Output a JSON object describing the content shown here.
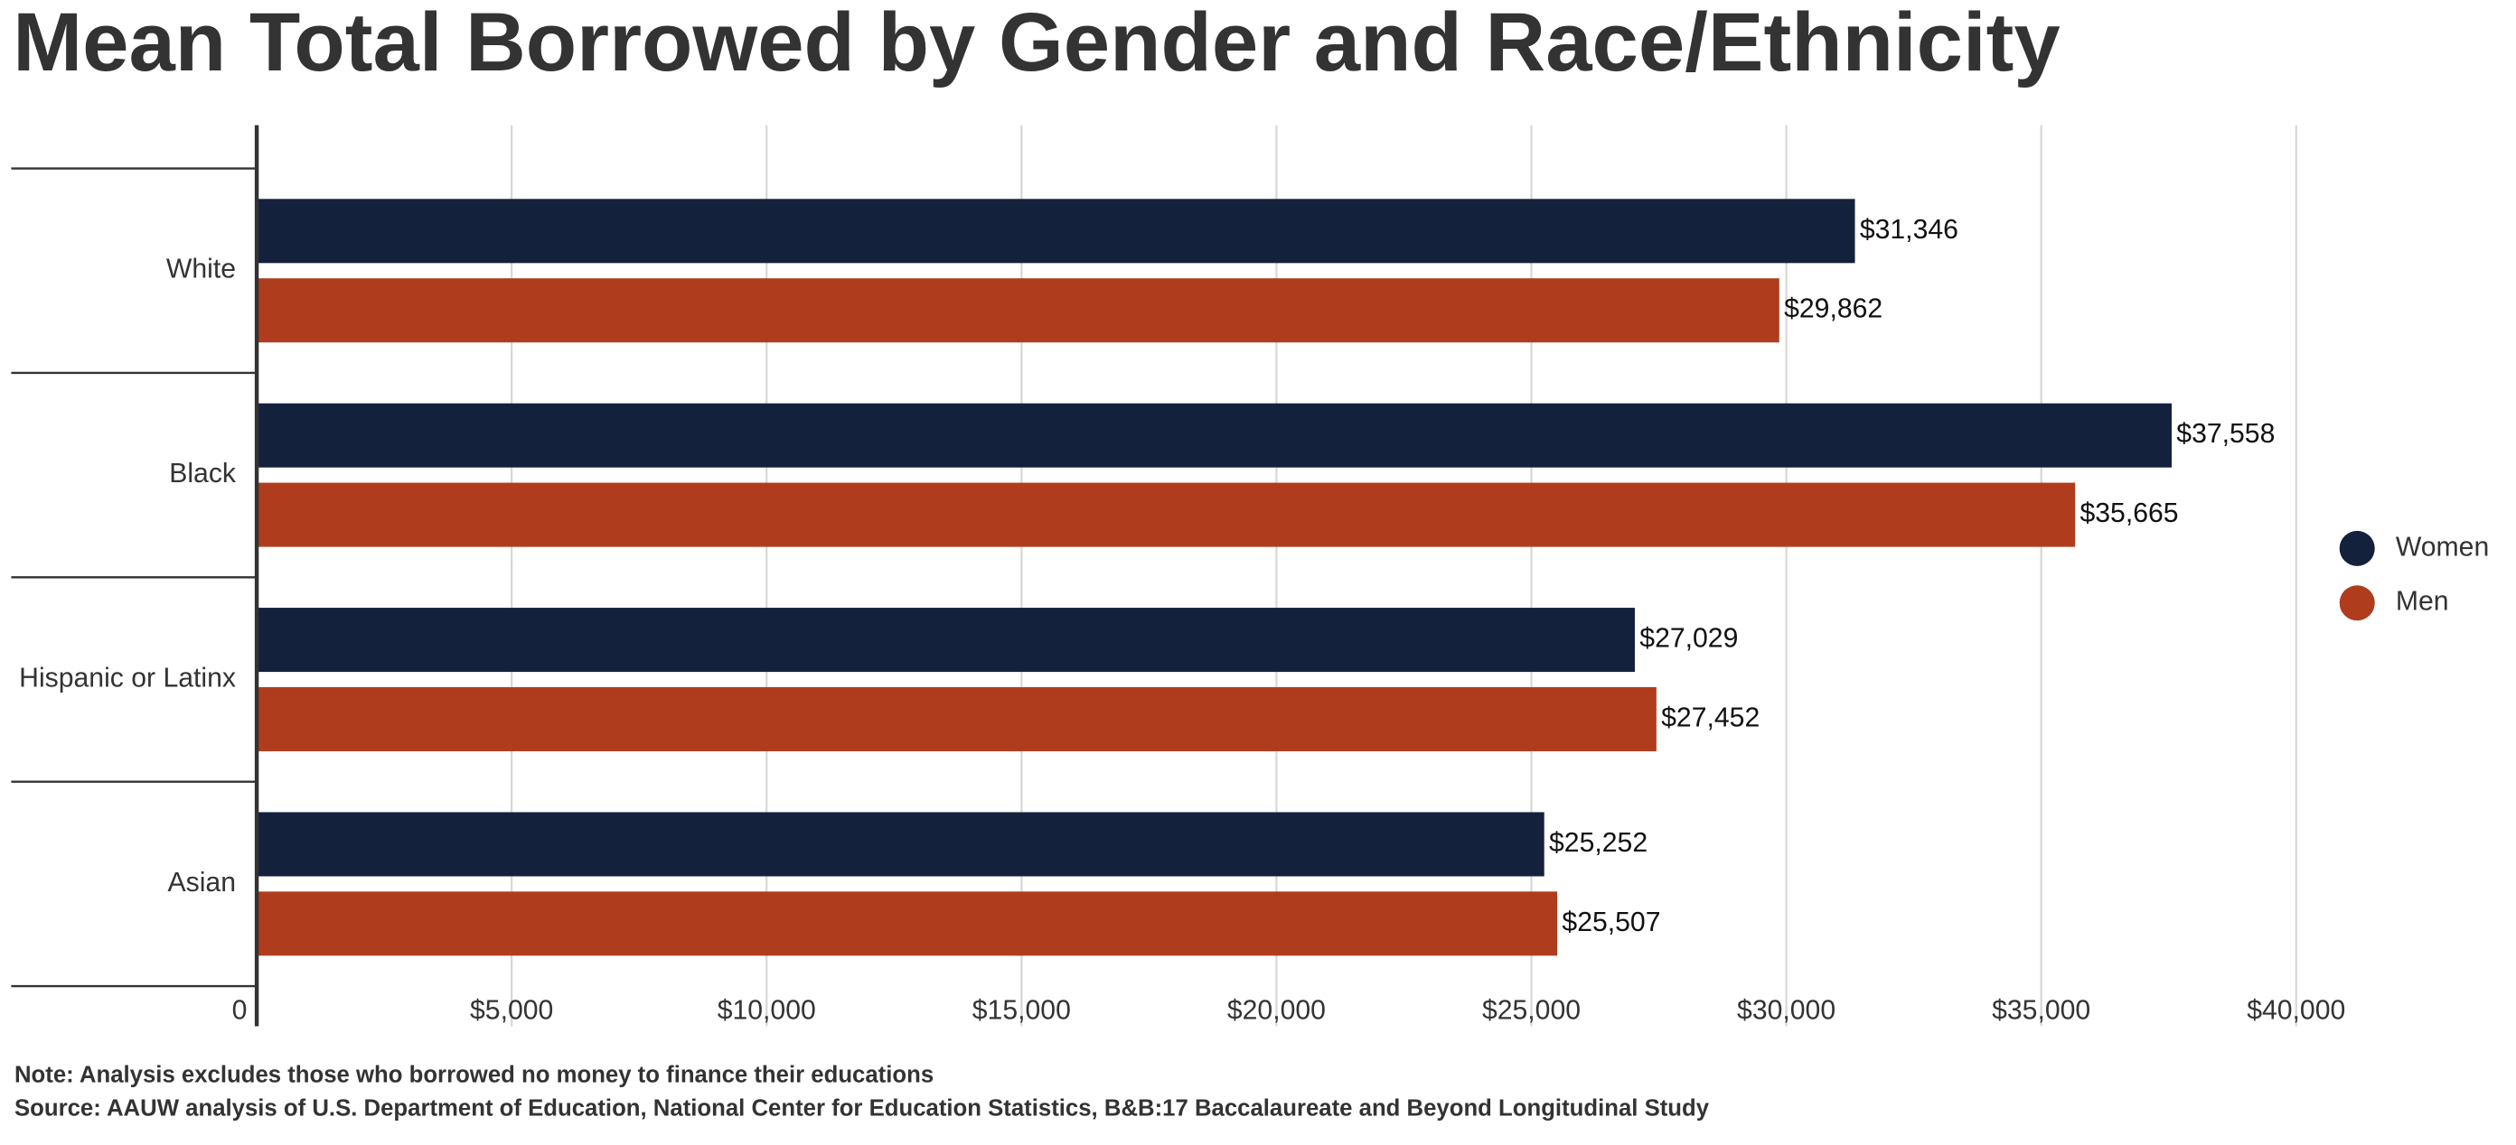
{
  "chart_data": {
    "type": "bar",
    "orientation": "horizontal",
    "title": "Mean Total Borrowed by Gender and Race/Ethnicity",
    "categories": [
      "White",
      "Black",
      "Hispanic or Latinx",
      "Asian"
    ],
    "series": [
      {
        "name": "Women",
        "color": "#13213c",
        "values": [
          31346,
          37558,
          27029,
          25252
        ],
        "value_labels": [
          "$31,346",
          "$37,558",
          "$27,029",
          "$25,252"
        ]
      },
      {
        "name": "Men",
        "color": "#b03c1e",
        "values": [
          29862,
          35665,
          27452,
          25507
        ],
        "value_labels": [
          "$29,862",
          "$35,665",
          "$27,452",
          "$25,507"
        ]
      }
    ],
    "xlim": [
      0,
      40000
    ],
    "xticks": [
      0,
      {
        "value": 5000,
        "label": "$5,000"
      },
      {
        "value": 10000,
        "label": "$10,000"
      },
      {
        "value": 15000,
        "label": "$15,000"
      },
      {
        "value": 20000,
        "label": "$20,000"
      },
      {
        "value": 25000,
        "label": "$25,000"
      },
      {
        "value": 30000,
        "label": "$30,000"
      },
      {
        "value": 35000,
        "label": "$35,000"
      },
      {
        "value": 40000,
        "label": "$40,000"
      }
    ],
    "grid": true,
    "legend": "right",
    "notes": [
      "Note: Analysis excludes those who borrowed no money to finance their educations",
      "Source: AAUW analysis of U.S. Department of Education, National Center for Education Statistics, B&B:17 Baccalaureate and Beyond Longitudinal Study"
    ]
  }
}
